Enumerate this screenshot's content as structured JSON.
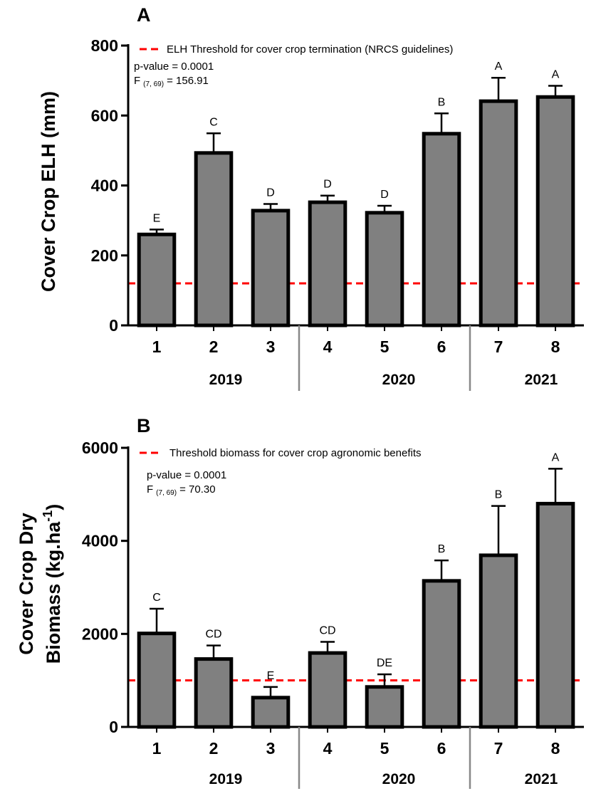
{
  "chart_data": [
    {
      "type": "bar",
      "panel_label": "A",
      "ylabel": "Cover Crop ELH (mm)",
      "ylim": [
        0,
        800
      ],
      "yticks": [
        0,
        200,
        400,
        600,
        800
      ],
      "categories": [
        "1",
        "2",
        "3",
        "4",
        "5",
        "6",
        "7",
        "8"
      ],
      "values": [
        260,
        493,
        328,
        352,
        322,
        548,
        641,
        653
      ],
      "error": [
        14,
        56,
        19,
        19,
        20,
        58,
        67,
        32
      ],
      "letters": [
        "E",
        "C",
        "D",
        "D",
        "D",
        "B",
        "A",
        "A"
      ],
      "groups": [
        {
          "label": "2019",
          "count": 3
        },
        {
          "label": "2020",
          "count": 3
        },
        {
          "label": "2021",
          "count": 2
        }
      ],
      "threshold": {
        "value": 120,
        "label": "ELH Threshold for cover crop termination  (NRCS guidelines)",
        "color": "#ff0000"
      },
      "stats": {
        "pvalue": "p-value = 0.0001",
        "f_prefix": "F",
        "f_sub": "(7, 69)",
        "f_value": "= 156.91"
      },
      "bar_color": "#808080"
    },
    {
      "type": "bar",
      "panel_label": "B",
      "ylabel_lines": [
        "Cover Crop Dry",
        "Biomass (kg.ha"
      ],
      "ylabel_sup": "-1",
      "ylabel_close": ")",
      "ylim": [
        0,
        6000
      ],
      "yticks": [
        0,
        2000,
        4000,
        6000
      ],
      "categories": [
        "1",
        "2",
        "3",
        "4",
        "5",
        "6",
        "7",
        "8"
      ],
      "values": [
        2010,
        1460,
        630,
        1590,
        860,
        3140,
        3690,
        4800
      ],
      "error": [
        530,
        290,
        230,
        240,
        270,
        440,
        1060,
        750
      ],
      "letters": [
        "C",
        "CD",
        "E",
        "CD",
        "DE",
        "B",
        "B",
        "A"
      ],
      "groups": [
        {
          "label": "2019",
          "count": 3
        },
        {
          "label": "2020",
          "count": 3
        },
        {
          "label": "2021",
          "count": 2
        }
      ],
      "threshold": {
        "value": 1000,
        "label": "Threshold biomass for cover crop agronomic benefits",
        "color": "#ff0000"
      },
      "stats": {
        "pvalue": "p-value = 0.0001",
        "f_prefix": "F",
        "f_sub": "(7, 69)",
        "f_value": "= 70.30"
      },
      "bar_color": "#808080"
    }
  ]
}
